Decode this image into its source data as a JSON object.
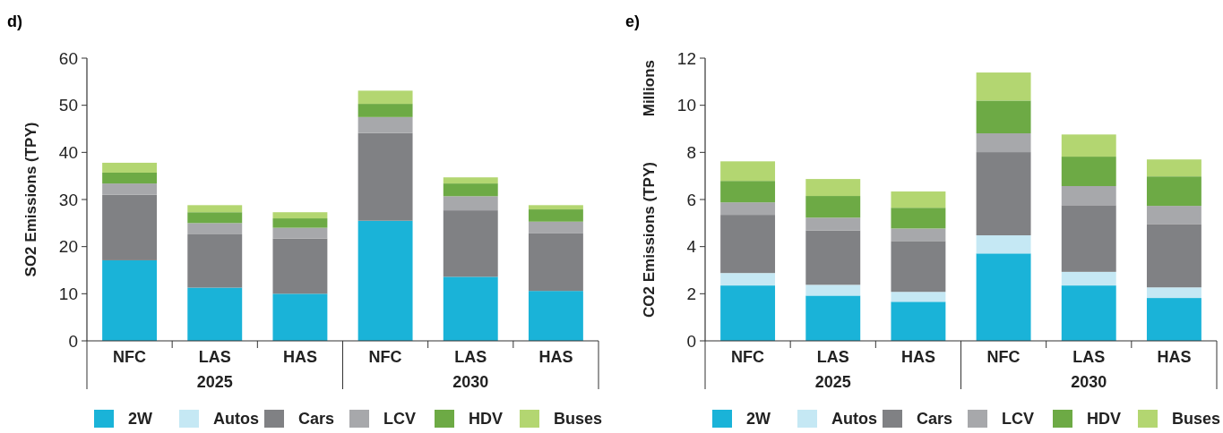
{
  "chart_data": [
    {
      "type": "bar",
      "title": "d)",
      "ylabel": "SO2 Emissions (TPY)",
      "stacked": true,
      "categories": [
        "NFC",
        "LAS",
        "HAS",
        "NFC",
        "LAS",
        "HAS"
      ],
      "annotations": [
        "2025",
        "2030"
      ],
      "ylim": [
        0,
        60
      ],
      "yticks": [
        0,
        10,
        20,
        30,
        40,
        50,
        60
      ],
      "grid": false,
      "legend": "bottom",
      "series": [
        {
          "name": "2W",
          "color": "#1ab3d8",
          "values": [
            17.1,
            11.3,
            10.0,
            25.5,
            13.6,
            10.6
          ]
        },
        {
          "name": "Autos",
          "color": "#c5e8f4",
          "values": [
            0,
            0,
            0,
            0,
            0,
            0
          ]
        },
        {
          "name": "Cars",
          "color": "#808184",
          "values": [
            13.9,
            11.3,
            11.7,
            18.6,
            14.1,
            12.2
          ]
        },
        {
          "name": "LCV",
          "color": "#a7a8ab",
          "values": [
            2.4,
            2.4,
            2.3,
            3.4,
            3.0,
            2.5
          ]
        },
        {
          "name": "HDV",
          "color": "#6daa45",
          "values": [
            2.3,
            2.3,
            2.0,
            2.8,
            2.7,
            2.6
          ]
        },
        {
          "name": "Buses",
          "color": "#b3d671",
          "values": [
            2.1,
            1.5,
            1.3,
            2.8,
            1.3,
            0.9
          ]
        }
      ]
    },
    {
      "type": "bar",
      "title": "e)",
      "ylabel": "CO2 Emissions (TPY)",
      "stacked": true,
      "categories": [
        "NFC",
        "LAS",
        "HAS",
        "NFC",
        "LAS",
        "HAS"
      ],
      "annotations": [
        "2025",
        "2030",
        "Millions"
      ],
      "ylim": [
        0,
        12
      ],
      "yticks": [
        0,
        2,
        4,
        6,
        8,
        10,
        12
      ],
      "grid": false,
      "legend": "bottom",
      "series": [
        {
          "name": "2W",
          "color": "#1ab3d8",
          "values": [
            2.35,
            1.92,
            1.66,
            3.71,
            2.35,
            1.82
          ]
        },
        {
          "name": "Autos",
          "color": "#c5e8f4",
          "values": [
            0.53,
            0.46,
            0.42,
            0.77,
            0.58,
            0.45
          ]
        },
        {
          "name": "Cars",
          "color": "#808184",
          "values": [
            2.47,
            2.31,
            2.16,
            3.53,
            2.83,
            2.69
          ]
        },
        {
          "name": "LCV",
          "color": "#a7a8ab",
          "values": [
            0.53,
            0.54,
            0.53,
            0.8,
            0.81,
            0.77
          ]
        },
        {
          "name": "HDV",
          "color": "#6daa45",
          "values": [
            0.91,
            0.92,
            0.88,
            1.39,
            1.25,
            1.25
          ]
        },
        {
          "name": "Buses",
          "color": "#b3d671",
          "values": [
            0.83,
            0.72,
            0.69,
            1.19,
            0.94,
            0.72
          ]
        }
      ]
    }
  ]
}
